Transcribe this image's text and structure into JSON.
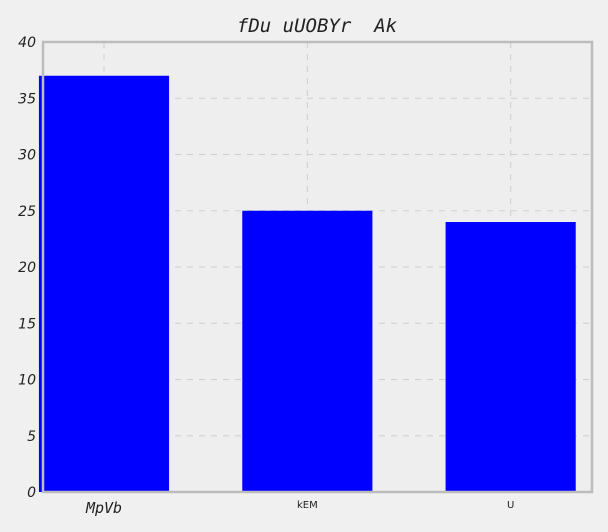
{
  "chart_data": {
    "type": "bar",
    "title": "fDu uUOBYr  Ak",
    "xlabel": "",
    "ylabel": "",
    "categories": [
      "MpVb",
      "kEM",
      "U"
    ],
    "values": [
      37,
      25,
      24
    ],
    "ylim": [
      0,
      40
    ],
    "yticks": [
      "0",
      "5",
      "10",
      "15",
      "20",
      "25",
      "30",
      "35",
      "40"
    ],
    "grid": true,
    "bar_color": "#0000ff",
    "plot_background": "#eeeeee",
    "figure_background": "#f0f0f0",
    "frame_color": "#bcbcbc"
  }
}
